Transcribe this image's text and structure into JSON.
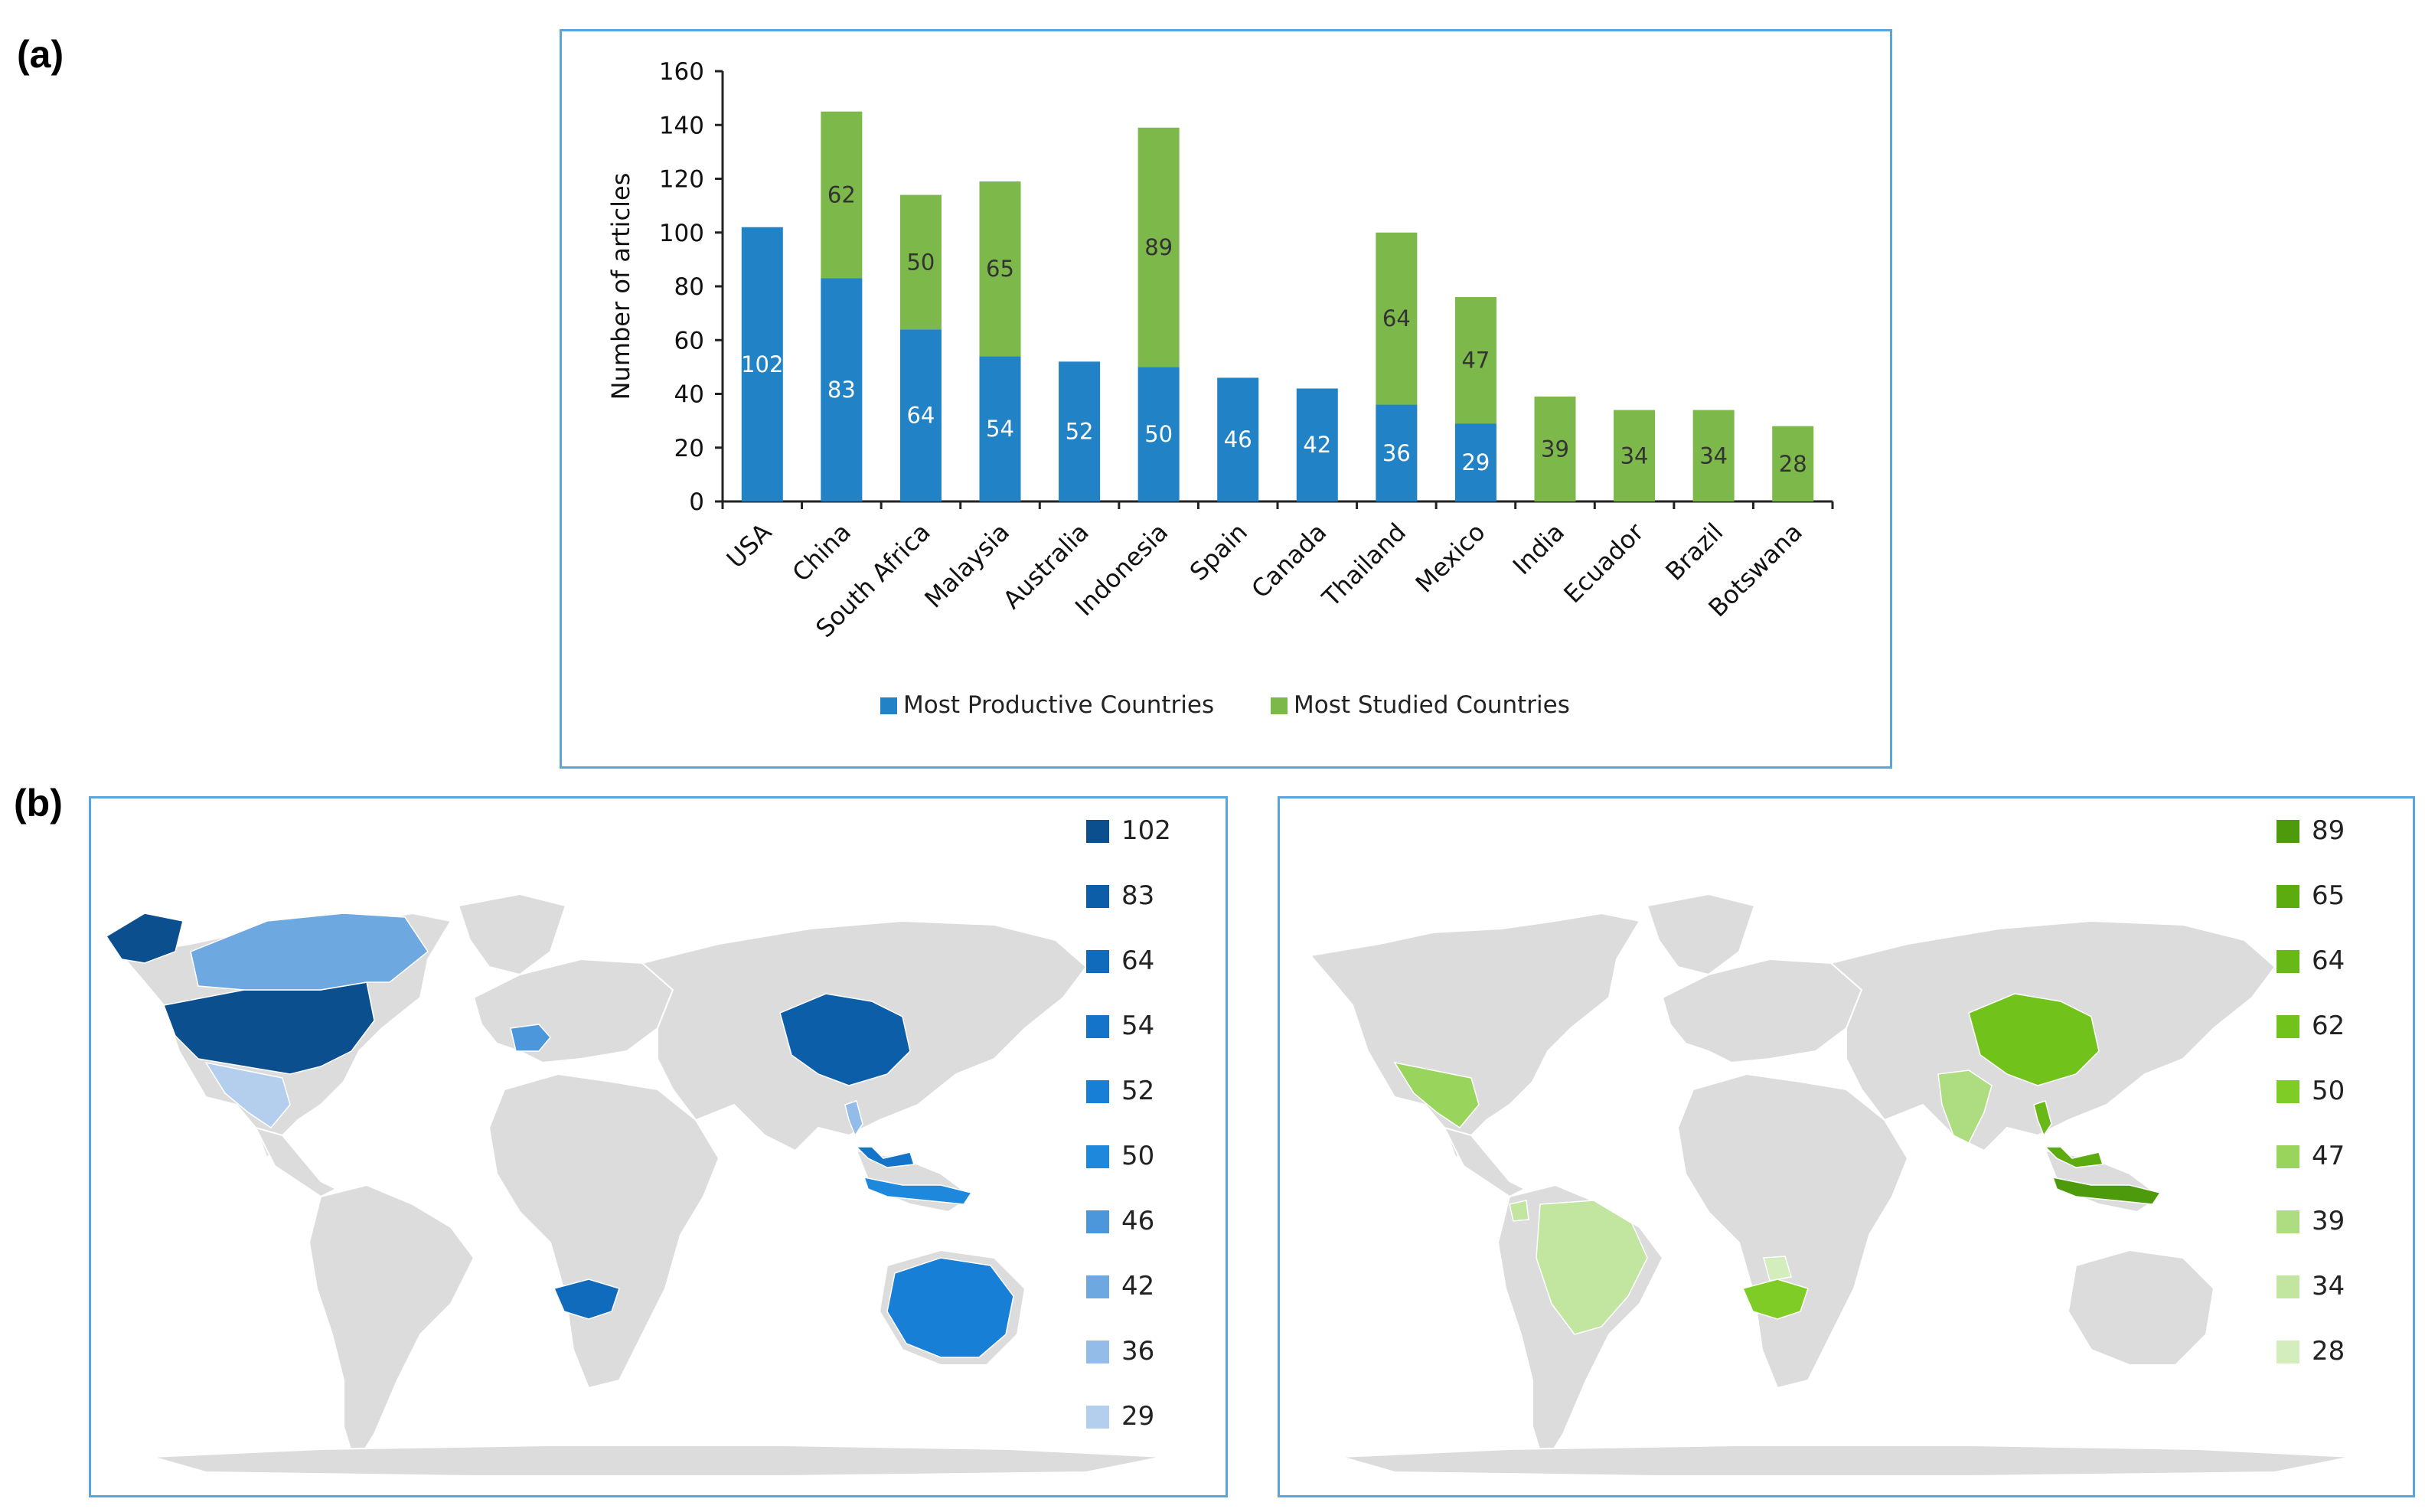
{
  "panels": {
    "a": "(a)",
    "b": "(b)"
  },
  "colors": {
    "productive": "#2182c6",
    "studied": "#7db84a",
    "land": "#dcdcdc",
    "frame": "#5aa6dc"
  },
  "chart_data": {
    "type": "bar",
    "stacked": true,
    "title": "",
    "xlabel": "",
    "ylabel": "Number of articles",
    "ylim": [
      0,
      160
    ],
    "yticks": [
      0,
      20,
      40,
      60,
      80,
      100,
      120,
      140,
      160
    ],
    "categories": [
      "USA",
      "China",
      "South Africa",
      "Malaysia",
      "Australia",
      "Indonesia",
      "Spain",
      "Canada",
      "Thailand",
      "Mexico",
      "India",
      "Ecuador",
      "Brazil",
      "Botswana"
    ],
    "series": [
      {
        "name": "Most Productive Countries",
        "color": "#2182c6",
        "values": [
          102,
          83,
          64,
          54,
          52,
          50,
          46,
          42,
          36,
          29,
          0,
          0,
          0,
          0
        ]
      },
      {
        "name": "Most Studied Countries",
        "color": "#7db84a",
        "values": [
          0,
          62,
          50,
          65,
          0,
          89,
          0,
          0,
          64,
          47,
          39,
          34,
          34,
          28
        ]
      }
    ],
    "legend_position": "bottom"
  },
  "map_productive": {
    "legend": [
      {
        "label": "102",
        "color": "#0b4f8f"
      },
      {
        "label": "83",
        "color": "#0d5ea8"
      },
      {
        "label": "64",
        "color": "#106bbd"
      },
      {
        "label": "54",
        "color": "#1374c9"
      },
      {
        "label": "52",
        "color": "#187fd6"
      },
      {
        "label": "50",
        "color": "#1e88dc"
      },
      {
        "label": "46",
        "color": "#4c97dc"
      },
      {
        "label": "42",
        "color": "#6ea8e0"
      },
      {
        "label": "36",
        "color": "#93bce8"
      },
      {
        "label": "29",
        "color": "#b4cfee"
      }
    ]
  },
  "map_studied": {
    "legend": [
      {
        "label": "89",
        "color": "#4d9a0c"
      },
      {
        "label": "65",
        "color": "#5cac10"
      },
      {
        "label": "64",
        "color": "#68b818"
      },
      {
        "label": "62",
        "color": "#72c21c"
      },
      {
        "label": "50",
        "color": "#7fcc26"
      },
      {
        "label": "47",
        "color": "#99d55c"
      },
      {
        "label": "39",
        "color": "#aedc80"
      },
      {
        "label": "34",
        "color": "#c2e5a0"
      },
      {
        "label": "28",
        "color": "#d4edbc"
      }
    ]
  }
}
